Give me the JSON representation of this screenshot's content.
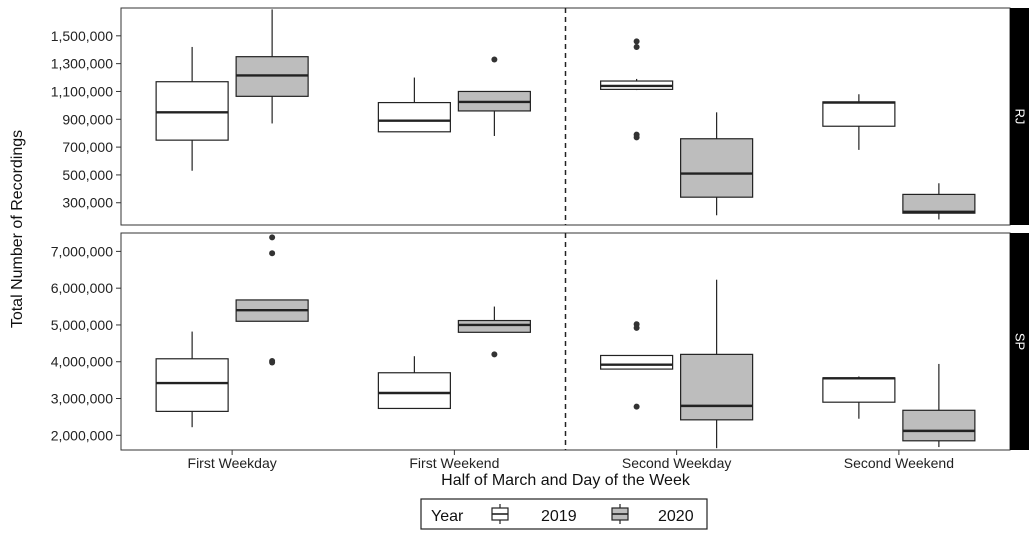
{
  "chart_data": {
    "type": "boxplot",
    "xlabel": "Half of March and Day of the Week",
    "ylabel": "Total Number of Recordings",
    "categories": [
      "First Weekday",
      "First Weekend",
      "Second Weekday",
      "Second Weekend"
    ],
    "divider_after_category": 1,
    "legend": {
      "title": "Year",
      "position": "bottom",
      "entries": [
        {
          "label": "2019",
          "fill": "#ffffff"
        },
        {
          "label": "2020",
          "fill": "#bdbdbd"
        }
      ]
    },
    "panels": [
      {
        "strip_label": "RJ",
        "ylim": [
          140000,
          1700000
        ],
        "yticks": [
          300000,
          500000,
          700000,
          900000,
          1100000,
          1300000,
          1500000
        ],
        "ytick_labels": [
          "300,000",
          "500,000",
          "700,000",
          "900,000",
          "1,100,000",
          "1,300,000",
          "1,500,000"
        ],
        "boxes": [
          {
            "category": "First Weekday",
            "year": "2019",
            "min": 530000,
            "q1": 750000,
            "median": 950000,
            "q3": 1170000,
            "max": 1420000,
            "outliers": []
          },
          {
            "category": "First Weekday",
            "year": "2020",
            "min": 870000,
            "q1": 1065000,
            "median": 1215000,
            "q3": 1350000,
            "max": 1690000,
            "outliers": []
          },
          {
            "category": "First Weekend",
            "year": "2019",
            "min": 810000,
            "q1": 810000,
            "median": 890000,
            "q3": 1020000,
            "max": 1200000,
            "outliers": []
          },
          {
            "category": "First Weekend",
            "year": "2020",
            "min": 780000,
            "q1": 960000,
            "median": 1025000,
            "q3": 1100000,
            "max": 1100000,
            "outliers": [
              1330000
            ]
          },
          {
            "category": "Second Weekday",
            "year": "2019",
            "min": 1110000,
            "q1": 1115000,
            "median": 1140000,
            "q3": 1175000,
            "max": 1190000,
            "outliers": [
              1460000,
              1420000,
              790000,
              770000
            ]
          },
          {
            "category": "Second Weekday",
            "year": "2020",
            "min": 210000,
            "q1": 340000,
            "median": 510000,
            "q3": 760000,
            "max": 950000,
            "outliers": []
          },
          {
            "category": "Second Weekend",
            "year": "2019",
            "min": 680000,
            "q1": 850000,
            "median": 1020000,
            "q3": 1025000,
            "max": 1080000,
            "outliers": []
          },
          {
            "category": "Second Weekend",
            "year": "2020",
            "min": 180000,
            "q1": 225000,
            "median": 235000,
            "q3": 360000,
            "max": 440000,
            "outliers": []
          }
        ]
      },
      {
        "strip_label": "SP",
        "ylim": [
          1600000,
          7500000
        ],
        "yticks": [
          2000000,
          3000000,
          4000000,
          5000000,
          6000000,
          7000000
        ],
        "ytick_labels": [
          "2,000,000",
          "3,000,000",
          "4,000,000",
          "5,000,000",
          "6,000,000",
          "7,000,000"
        ],
        "boxes": [
          {
            "category": "First Weekday",
            "year": "2019",
            "min": 2220000,
            "q1": 2650000,
            "median": 3420000,
            "q3": 4080000,
            "max": 4820000,
            "outliers": []
          },
          {
            "category": "First Weekday",
            "year": "2020",
            "min": 5100000,
            "q1": 5100000,
            "median": 5400000,
            "q3": 5680000,
            "max": 5680000,
            "outliers": [
              7380000,
              6950000,
              4020000,
              3980000
            ]
          },
          {
            "category": "First Weekend",
            "year": "2019",
            "min": 2730000,
            "q1": 2730000,
            "median": 3150000,
            "q3": 3700000,
            "max": 4150000,
            "outliers": []
          },
          {
            "category": "First Weekend",
            "year": "2020",
            "min": 4800000,
            "q1": 4800000,
            "median": 5000000,
            "q3": 5120000,
            "max": 5500000,
            "outliers": [
              4200000
            ]
          },
          {
            "category": "Second Weekday",
            "year": "2019",
            "min": 3800000,
            "q1": 3800000,
            "median": 3920000,
            "q3": 4170000,
            "max": 4170000,
            "outliers": [
              5020000,
              4920000,
              2780000
            ]
          },
          {
            "category": "Second Weekday",
            "year": "2020",
            "min": 1650000,
            "q1": 2420000,
            "median": 2800000,
            "q3": 4200000,
            "max": 6230000,
            "outliers": []
          },
          {
            "category": "Second Weekend",
            "year": "2019",
            "min": 2450000,
            "q1": 2900000,
            "median": 3550000,
            "q3": 3560000,
            "max": 3600000,
            "outliers": []
          },
          {
            "category": "Second Weekend",
            "year": "2020",
            "min": 1680000,
            "q1": 1850000,
            "median": 2120000,
            "q3": 2680000,
            "max": 3940000,
            "outliers": []
          }
        ]
      }
    ]
  }
}
